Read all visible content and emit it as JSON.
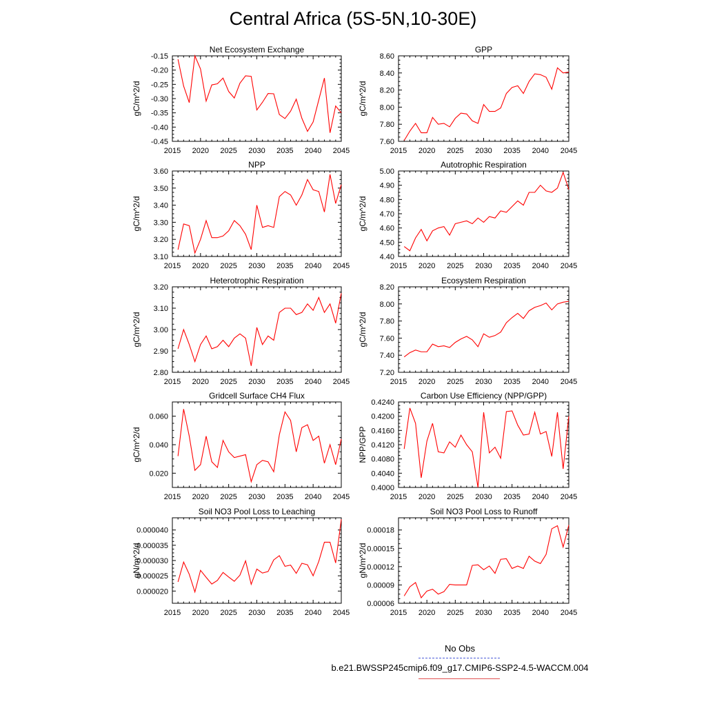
{
  "title": "Central Africa (5S-5N,10-30E)",
  "legend": {
    "obs_label": "No Obs",
    "case_label": "b.e21.BWSSP245cmip6.f09_g17.CMIP6-SSP2-4.5-WACCM.004",
    "obs_color": "#4a5ad8",
    "case_color": "#e05050"
  },
  "chart_data": [
    {
      "type": "line",
      "title": "Net Ecosystem Exchange",
      "xlabel": "",
      "ylabel": "gC/m^2/d",
      "xlim": [
        2015,
        2045
      ],
      "ylim": [
        -0.45,
        -0.15
      ],
      "xticks": [
        "2015",
        "2020",
        "2025",
        "2030",
        "2035",
        "2040",
        "2045"
      ],
      "yticks": [
        "-0.15",
        "-0.20",
        "-0.25",
        "-0.30",
        "-0.35",
        "-0.40",
        "-0.45"
      ],
      "x": [
        2016,
        2017,
        2018,
        2019,
        2020,
        2021,
        2022,
        2023,
        2024,
        2025,
        2026,
        2027,
        2028,
        2029,
        2030,
        2031,
        2032,
        2033,
        2034,
        2035,
        2036,
        2037,
        2038,
        2039,
        2040,
        2041,
        2042,
        2043,
        2044,
        2045
      ],
      "series": [
        {
          "color": "#ff0000",
          "values": [
            -0.162,
            -0.256,
            -0.314,
            -0.15,
            -0.196,
            -0.309,
            -0.252,
            -0.248,
            -0.228,
            -0.275,
            -0.298,
            -0.246,
            -0.22,
            -0.222,
            -0.34,
            -0.313,
            -0.282,
            -0.283,
            -0.356,
            -0.37,
            -0.344,
            -0.302,
            -0.369,
            -0.415,
            -0.382,
            -0.305,
            -0.228,
            -0.42,
            -0.326,
            -0.35
          ]
        }
      ]
    },
    {
      "type": "line",
      "title": "GPP",
      "xlabel": "",
      "ylabel": "gC/m^2/d",
      "xlim": [
        2015,
        2045
      ],
      "ylim": [
        7.6,
        8.6
      ],
      "xticks": [
        "2015",
        "2020",
        "2025",
        "2030",
        "2035",
        "2040",
        "2045"
      ],
      "yticks": [
        "8.60",
        "8.40",
        "8.20",
        "8.00",
        "7.80",
        "7.60"
      ],
      "x": [
        2016,
        2017,
        2018,
        2019,
        2020,
        2021,
        2022,
        2023,
        2024,
        2025,
        2026,
        2027,
        2028,
        2029,
        2030,
        2031,
        2032,
        2033,
        2034,
        2035,
        2036,
        2037,
        2038,
        2039,
        2040,
        2041,
        2042,
        2043,
        2044,
        2045
      ],
      "series": [
        {
          "color": "#ff0000",
          "values": [
            7.61,
            7.72,
            7.81,
            7.7,
            7.7,
            7.88,
            7.8,
            7.81,
            7.77,
            7.87,
            7.93,
            7.92,
            7.84,
            7.81,
            8.03,
            7.95,
            7.95,
            7.99,
            8.16,
            8.23,
            8.25,
            8.16,
            8.3,
            8.39,
            8.38,
            8.35,
            8.21,
            8.46,
            8.4,
            8.41
          ]
        }
      ]
    },
    {
      "type": "line",
      "title": "NPP",
      "xlabel": "",
      "ylabel": "gC/m^2/d",
      "xlim": [
        2015,
        2045
      ],
      "ylim": [
        3.1,
        3.6
      ],
      "xticks": [
        "2015",
        "2020",
        "2025",
        "2030",
        "2035",
        "2040",
        "2045"
      ],
      "yticks": [
        "3.60",
        "3.50",
        "3.40",
        "3.30",
        "3.20",
        "3.10"
      ],
      "x": [
        2016,
        2017,
        2018,
        2019,
        2020,
        2021,
        2022,
        2023,
        2024,
        2025,
        2026,
        2027,
        2028,
        2029,
        2030,
        2031,
        2032,
        2033,
        2034,
        2035,
        2036,
        2037,
        2038,
        2039,
        2040,
        2041,
        2042,
        2043,
        2044,
        2045
      ],
      "series": [
        {
          "color": "#ff0000",
          "values": [
            3.14,
            3.29,
            3.28,
            3.12,
            3.2,
            3.31,
            3.21,
            3.21,
            3.22,
            3.25,
            3.31,
            3.28,
            3.23,
            3.14,
            3.4,
            3.27,
            3.28,
            3.27,
            3.45,
            3.48,
            3.46,
            3.4,
            3.46,
            3.55,
            3.49,
            3.48,
            3.36,
            3.58,
            3.41,
            3.52
          ]
        }
      ]
    },
    {
      "type": "line",
      "title": "Autotrophic Respiration",
      "xlabel": "",
      "ylabel": "gC/m^2/d",
      "xlim": [
        2015,
        2045
      ],
      "ylim": [
        4.4,
        5.0
      ],
      "xticks": [
        "2015",
        "2020",
        "2025",
        "2030",
        "2035",
        "2040",
        "2045"
      ],
      "yticks": [
        "5.00",
        "4.90",
        "4.80",
        "4.70",
        "4.60",
        "4.50",
        "4.40"
      ],
      "x": [
        2016,
        2017,
        2018,
        2019,
        2020,
        2021,
        2022,
        2023,
        2024,
        2025,
        2026,
        2027,
        2028,
        2029,
        2030,
        2031,
        2032,
        2033,
        2034,
        2035,
        2036,
        2037,
        2038,
        2039,
        2040,
        2041,
        2042,
        2043,
        2044,
        2045
      ],
      "series": [
        {
          "color": "#ff0000",
          "values": [
            4.47,
            4.44,
            4.53,
            4.59,
            4.51,
            4.58,
            4.6,
            4.61,
            4.55,
            4.63,
            4.64,
            4.65,
            4.63,
            4.67,
            4.64,
            4.68,
            4.67,
            4.72,
            4.71,
            4.75,
            4.79,
            4.76,
            4.85,
            4.85,
            4.9,
            4.86,
            4.85,
            4.88,
            4.99,
            4.87
          ]
        }
      ]
    },
    {
      "type": "line",
      "title": "Heterotrophic Respiration",
      "xlabel": "",
      "ylabel": "gC/m^2/d",
      "xlim": [
        2015,
        2045
      ],
      "ylim": [
        2.8,
        3.2
      ],
      "xticks": [
        "2015",
        "2020",
        "2025",
        "2030",
        "2035",
        "2040",
        "2045"
      ],
      "yticks": [
        "3.20",
        "3.10",
        "3.00",
        "2.90",
        "2.80"
      ],
      "x": [
        2016,
        2017,
        2018,
        2019,
        2020,
        2021,
        2022,
        2023,
        2024,
        2025,
        2026,
        2027,
        2028,
        2029,
        2030,
        2031,
        2032,
        2033,
        2034,
        2035,
        2036,
        2037,
        2038,
        2039,
        2040,
        2041,
        2042,
        2043,
        2044,
        2045
      ],
      "series": [
        {
          "color": "#ff0000",
          "values": [
            2.91,
            3.0,
            2.93,
            2.85,
            2.93,
            2.97,
            2.91,
            2.92,
            2.95,
            2.92,
            2.96,
            2.98,
            2.96,
            2.83,
            3.01,
            2.93,
            2.97,
            2.95,
            3.08,
            3.1,
            3.1,
            3.07,
            3.08,
            3.12,
            3.09,
            3.15,
            3.08,
            3.12,
            3.03,
            3.17
          ]
        }
      ]
    },
    {
      "type": "line",
      "title": "Ecosystem Respiration",
      "xlabel": "",
      "ylabel": "gC/m^2/d",
      "xlim": [
        2015,
        2045
      ],
      "ylim": [
        7.2,
        8.2
      ],
      "xticks": [
        "2015",
        "2020",
        "2025",
        "2030",
        "2035",
        "2040",
        "2045"
      ],
      "yticks": [
        "8.20",
        "8.00",
        "7.80",
        "7.60",
        "7.40",
        "7.20"
      ],
      "x": [
        2016,
        2017,
        2018,
        2019,
        2020,
        2021,
        2022,
        2023,
        2024,
        2025,
        2026,
        2027,
        2028,
        2029,
        2030,
        2031,
        2032,
        2033,
        2034,
        2035,
        2036,
        2037,
        2038,
        2039,
        2040,
        2041,
        2042,
        2043,
        2044,
        2045
      ],
      "series": [
        {
          "color": "#ff0000",
          "values": [
            7.38,
            7.43,
            7.46,
            7.44,
            7.44,
            7.53,
            7.5,
            7.51,
            7.49,
            7.55,
            7.59,
            7.62,
            7.58,
            7.5,
            7.65,
            7.61,
            7.63,
            7.67,
            7.78,
            7.84,
            7.89,
            7.83,
            7.92,
            7.96,
            7.98,
            8.01,
            7.93,
            8.0,
            8.02,
            8.03
          ]
        }
      ]
    },
    {
      "type": "line",
      "title": "Gridcell Surface CH4 Flux",
      "xlabel": "",
      "ylabel": "gC/m^2/d",
      "xlim": [
        2015,
        2045
      ],
      "ylim": [
        0.01,
        0.07
      ],
      "xticks": [
        "2015",
        "2020",
        "2025",
        "2030",
        "2035",
        "2040",
        "2045"
      ],
      "yticks": [
        "0.060",
        "0.040",
        "0.020"
      ],
      "ytick_values": [
        0.06,
        0.04,
        0.02
      ],
      "x": [
        2016,
        2017,
        2018,
        2019,
        2020,
        2021,
        2022,
        2023,
        2024,
        2025,
        2026,
        2027,
        2028,
        2029,
        2030,
        2031,
        2032,
        2033,
        2034,
        2035,
        2036,
        2037,
        2038,
        2039,
        2040,
        2041,
        2042,
        2043,
        2044,
        2045
      ],
      "series": [
        {
          "color": "#ff0000",
          "values": [
            0.032,
            0.065,
            0.046,
            0.022,
            0.026,
            0.046,
            0.028,
            0.024,
            0.043,
            0.035,
            0.031,
            0.032,
            0.033,
            0.014,
            0.026,
            0.029,
            0.028,
            0.021,
            0.047,
            0.063,
            0.057,
            0.035,
            0.052,
            0.054,
            0.043,
            0.046,
            0.027,
            0.04,
            0.026,
            0.044
          ]
        }
      ]
    },
    {
      "type": "line",
      "title": "Carbon Use Efficiency (NPP/GPP)",
      "xlabel": "",
      "ylabel": "NPP/GPP",
      "xlim": [
        2015,
        2045
      ],
      "ylim": [
        0.4,
        0.424
      ],
      "xticks": [
        "2015",
        "2020",
        "2025",
        "2030",
        "2035",
        "2040",
        "2045"
      ],
      "yticks": [
        "0.4240",
        "0.4200",
        "0.4160",
        "0.4120",
        "0.4080",
        "0.4040",
        "0.4000"
      ],
      "x": [
        2016,
        2017,
        2018,
        2019,
        2020,
        2021,
        2022,
        2023,
        2024,
        2025,
        2026,
        2027,
        2028,
        2029,
        2030,
        2031,
        2032,
        2033,
        2034,
        2035,
        2036,
        2037,
        2038,
        2039,
        2040,
        2041,
        2042,
        2043,
        2044,
        2045
      ],
      "series": [
        {
          "color": "#ff0000",
          "values": [
            0.4108,
            0.4223,
            0.418,
            0.4027,
            0.413,
            0.418,
            0.41,
            0.4097,
            0.4128,
            0.4113,
            0.4147,
            0.412,
            0.41,
            0.4,
            0.4211,
            0.4097,
            0.4113,
            0.4082,
            0.4213,
            0.4215,
            0.4175,
            0.4147,
            0.415,
            0.4211,
            0.415,
            0.4157,
            0.4087,
            0.4211,
            0.4052,
            0.42
          ]
        }
      ]
    },
    {
      "type": "line",
      "title": "Soil NO3 Pool Loss to Leaching",
      "xlabel": "",
      "ylabel": "gN/m^2/d",
      "xlim": [
        2015,
        2045
      ],
      "ylim": [
        1.6e-05,
        4.4e-05
      ],
      "xticks": [
        "2015",
        "2020",
        "2025",
        "2030",
        "2035",
        "2040",
        "2045"
      ],
      "yticks": [
        "0.000040",
        "0.000035",
        "0.000030",
        "0.000025",
        "0.000020"
      ],
      "ytick_values": [
        4e-05,
        3.5e-05,
        3e-05,
        2.5e-05,
        2e-05
      ],
      "x": [
        2016,
        2017,
        2018,
        2019,
        2020,
        2021,
        2022,
        2023,
        2024,
        2025,
        2026,
        2027,
        2028,
        2029,
        2030,
        2031,
        2032,
        2033,
        2034,
        2035,
        2036,
        2037,
        2038,
        2039,
        2040,
        2041,
        2042,
        2043,
        2044,
        2045
      ],
      "series": [
        {
          "color": "#ff0000",
          "values": [
            2.3e-05,
            2.95e-05,
            2.55e-05,
            1.97e-05,
            2.68e-05,
            2.45e-05,
            2.23e-05,
            2.35e-05,
            2.61e-05,
            2.46e-05,
            2.32e-05,
            2.52e-05,
            2.99e-05,
            2.22e-05,
            2.72e-05,
            2.59e-05,
            2.64e-05,
            3.02e-05,
            3.16e-05,
            2.81e-05,
            2.85e-05,
            2.58e-05,
            2.91e-05,
            2.86e-05,
            2.5e-05,
            2.97e-05,
            3.6e-05,
            3.6e-05,
            2.92e-05,
            4.35e-05
          ]
        }
      ]
    },
    {
      "type": "line",
      "title": "Soil NO3 Pool Loss to Runoff",
      "xlabel": "",
      "ylabel": "gN/m^2/d",
      "xlim": [
        2015,
        2045
      ],
      "ylim": [
        6e-05,
        0.0002
      ],
      "xticks": [
        "2015",
        "2020",
        "2025",
        "2030",
        "2035",
        "2040",
        "2045"
      ],
      "yticks": [
        "0.00018",
        "0.00015",
        "0.00012",
        "0.00009",
        "0.00006"
      ],
      "ytick_values": [
        0.00018,
        0.00015,
        0.00012,
        9e-05,
        6e-05
      ],
      "x": [
        2016,
        2017,
        2018,
        2019,
        2020,
        2021,
        2022,
        2023,
        2024,
        2025,
        2026,
        2027,
        2028,
        2029,
        2030,
        2031,
        2032,
        2033,
        2034,
        2035,
        2036,
        2037,
        2038,
        2039,
        2040,
        2041,
        2042,
        2043,
        2044,
        2045
      ],
      "series": [
        {
          "color": "#ff0000",
          "values": [
            7.2e-05,
            8.7e-05,
            9.4e-05,
            6.9e-05,
            8e-05,
            8.3e-05,
            7.5e-05,
            7.9e-05,
            9.1e-05,
            9e-05,
            9e-05,
            9e-05,
            0.000122,
            0.000123,
            0.000115,
            0.000121,
            0.000109,
            0.000132,
            0.000133,
            0.000117,
            0.000121,
            0.000117,
            0.000137,
            0.000129,
            0.000125,
            0.00014,
            0.000182,
            0.000187,
            0.000152,
            0.000188
          ]
        }
      ]
    }
  ]
}
